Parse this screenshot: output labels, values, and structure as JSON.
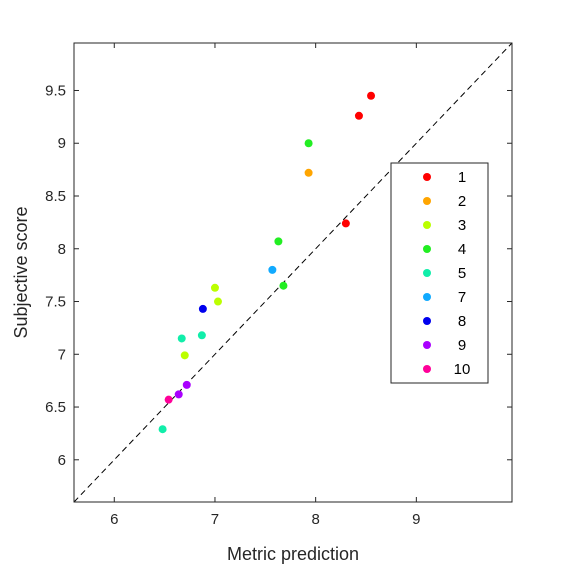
{
  "chart_data": {
    "type": "scatter",
    "title": "",
    "xlabel": "Metric prediction",
    "ylabel": "Subjective score",
    "xlim": [
      5.6,
      9.95
    ],
    "ylim": [
      5.6,
      9.95
    ],
    "xticks": [
      "6",
      "7",
      "8",
      "9"
    ],
    "yticks": [
      "6",
      "6.5",
      "7",
      "7.5",
      "8",
      "8.5",
      "9",
      "9.5"
    ],
    "reference_line": "y = x (dashed)",
    "grid": false,
    "legend_position": "right",
    "series": [
      {
        "name": "1",
        "color": "#ff0000",
        "points": [
          [
            8.55,
            9.45
          ],
          [
            8.43,
            9.26
          ],
          [
            8.3,
            8.24
          ]
        ]
      },
      {
        "name": "2",
        "color": "#ffa500",
        "points": [
          [
            7.93,
            8.72
          ]
        ]
      },
      {
        "name": "3",
        "color": "#bbff00",
        "points": [
          [
            7.0,
            7.63
          ],
          [
            7.03,
            7.5
          ],
          [
            6.7,
            6.99
          ]
        ]
      },
      {
        "name": "4",
        "color": "#22ee22",
        "points": [
          [
            7.93,
            9.0
          ],
          [
            7.63,
            8.07
          ],
          [
            7.68,
            7.65
          ]
        ]
      },
      {
        "name": "5",
        "color": "#11eeaa",
        "points": [
          [
            6.67,
            7.15
          ],
          [
            6.87,
            7.18
          ],
          [
            6.48,
            6.29
          ]
        ]
      },
      {
        "name": "7",
        "color": "#11aaff",
        "points": [
          [
            7.57,
            7.8
          ]
        ]
      },
      {
        "name": "8",
        "color": "#0000ee",
        "points": [
          [
            6.88,
            7.43
          ]
        ]
      },
      {
        "name": "9",
        "color": "#aa00ff",
        "points": [
          [
            6.72,
            6.71
          ],
          [
            6.64,
            6.62
          ]
        ]
      },
      {
        "name": "10",
        "color": "#ff0099",
        "points": [
          [
            6.54,
            6.57
          ]
        ]
      }
    ]
  }
}
